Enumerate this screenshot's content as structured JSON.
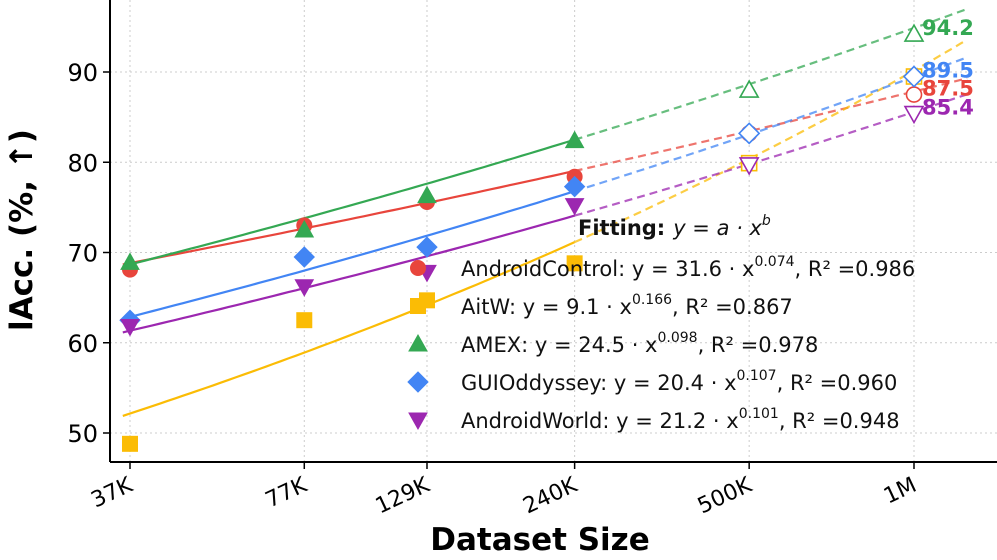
{
  "chart_data": {
    "type": "scatter",
    "title": "",
    "xlabel": "Dataset Size",
    "ylabel": "lAcc. (%, ↑)",
    "xscale": "log",
    "ylim": [
      46,
      98
    ],
    "yticks": [
      50,
      60,
      70,
      80,
      90
    ],
    "xticks": [
      {
        "value": 37000,
        "label": "37K"
      },
      {
        "value": 77000,
        "label": "77K"
      },
      {
        "value": 129000,
        "label": "129K"
      },
      {
        "value": 240000,
        "label": "240K"
      },
      {
        "value": 500000,
        "label": "500K"
      },
      {
        "value": 1000000,
        "label": "1M"
      }
    ],
    "xlim": [
      28000,
      1300000
    ],
    "grid": true,
    "legend": {
      "title_bold": "Fitting:",
      "title_formula": "y = a · x",
      "title_sup": "b",
      "placement": "lower-right"
    },
    "series": [
      {
        "name": "AndroidControl",
        "color": "#e8453c",
        "marker": "circle",
        "a": 31.6,
        "b": 0.074,
        "x_observed": [
          37000,
          77000,
          129000,
          240000
        ],
        "y_observed": [
          68.1,
          73.0,
          75.6,
          78.4
        ],
        "x_predicted": [
          500000,
          1000000
        ],
        "y_predicted": [
          83.2,
          87.5
        ],
        "end_label": "87.5",
        "legend_prefix": "AndroidControl: y = 31.6 · x",
        "legend_exp": "0.074",
        "legend_r2": ", R² =0.986"
      },
      {
        "name": "AitW",
        "color": "#fbbc05",
        "marker": "square",
        "a": 9.1,
        "b": 0.166,
        "x_observed": [
          37000,
          77000,
          129000,
          240000
        ],
        "y_observed": [
          48.8,
          62.5,
          64.7,
          68.8
        ],
        "x_predicted": [
          500000,
          1000000
        ],
        "y_predicted": [
          79.9,
          89.5
        ],
        "end_label": null,
        "legend_prefix": "AitW: y = 9.1 · x",
        "legend_exp": "0.166",
        "legend_r2": ", R² =0.867"
      },
      {
        "name": "AMEX",
        "color": "#34a853",
        "marker": "triangle-up",
        "a": 24.5,
        "b": 0.098,
        "x_observed": [
          37000,
          77000,
          129000,
          240000
        ],
        "y_observed": [
          68.9,
          72.5,
          76.3,
          82.4
        ],
        "x_predicted": [
          500000,
          1000000
        ],
        "y_predicted": [
          88.0,
          94.2
        ],
        "end_label": "94.2",
        "legend_prefix": "AMEX: y = 24.5 · x",
        "legend_exp": "0.098",
        "legend_r2": ", R² =0.978"
      },
      {
        "name": "GUIOddyssey",
        "color": "#4285f4",
        "marker": "diamond",
        "a": 20.4,
        "b": 0.107,
        "x_observed": [
          37000,
          77000,
          129000,
          240000
        ],
        "y_observed": [
          62.5,
          69.5,
          70.6,
          77.3
        ],
        "x_predicted": [
          500000,
          1000000
        ],
        "y_predicted": [
          83.2,
          89.5
        ],
        "end_label": "89.5",
        "legend_prefix": "GUIOddyssey: y = 20.4 · x",
        "legend_exp": "0.107",
        "legend_r2": ", R² =0.960"
      },
      {
        "name": "AndroidWorld",
        "color": "#9c27b0",
        "marker": "triangle-down",
        "a": 21.2,
        "b": 0.101,
        "x_observed": [
          37000,
          77000,
          129000,
          240000
        ],
        "y_observed": [
          61.8,
          66.2,
          67.8,
          75.2
        ],
        "x_predicted": [
          500000,
          1000000
        ],
        "y_predicted": [
          79.7,
          85.4
        ],
        "end_label": "85.4",
        "legend_prefix": "AndroidWorld: y = 21.2 · x",
        "legend_exp": "0.101",
        "legend_r2": ", R² =0.948"
      }
    ]
  }
}
